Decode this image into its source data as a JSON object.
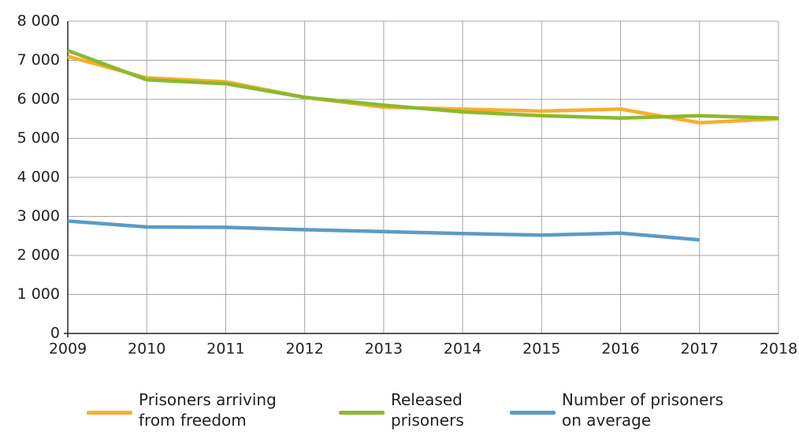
{
  "chart_data": {
    "type": "line",
    "x": [
      2009,
      2010,
      2011,
      2012,
      2013,
      2014,
      2015,
      2016,
      2017,
      2018
    ],
    "xlim": [
      2009,
      2018
    ],
    "xticks": [
      2009,
      2010,
      2011,
      2012,
      2013,
      2014,
      2015,
      2016,
      2017,
      2018
    ],
    "ylim": [
      0,
      8000
    ],
    "yticks": [
      0,
      {
        "value": 1000,
        "label": "1 000"
      },
      {
        "value": 2000,
        "label": "2 000"
      },
      {
        "value": 3000,
        "label": "3 000"
      },
      {
        "value": 4000,
        "label": "4 000"
      },
      {
        "value": 5000,
        "label": "5 000"
      },
      {
        "value": 6000,
        "label": "6 000"
      },
      {
        "value": 7000,
        "label": "7 000"
      },
      {
        "value": 8000,
        "label": "8 000"
      }
    ],
    "grid": true,
    "legend": "bottom",
    "series": [
      {
        "name": "Prisoners arriving\nfrom freedom",
        "color": "#f7ae2e",
        "values": [
          7100,
          6550,
          6450,
          6050,
          5800,
          5750,
          5700,
          5750,
          5400,
          5500
        ]
      },
      {
        "name": "Released\nprisoners",
        "color": "#8bb92d",
        "values": [
          7250,
          6500,
          6400,
          6050,
          5850,
          5680,
          5580,
          5520,
          5580,
          5520
        ]
      },
      {
        "name": "Number of prisoners\non average",
        "color": "#5b9bc6",
        "values": [
          2880,
          2730,
          2720,
          2660,
          2610,
          2560,
          2520,
          2570,
          2400,
          null
        ]
      }
    ]
  }
}
